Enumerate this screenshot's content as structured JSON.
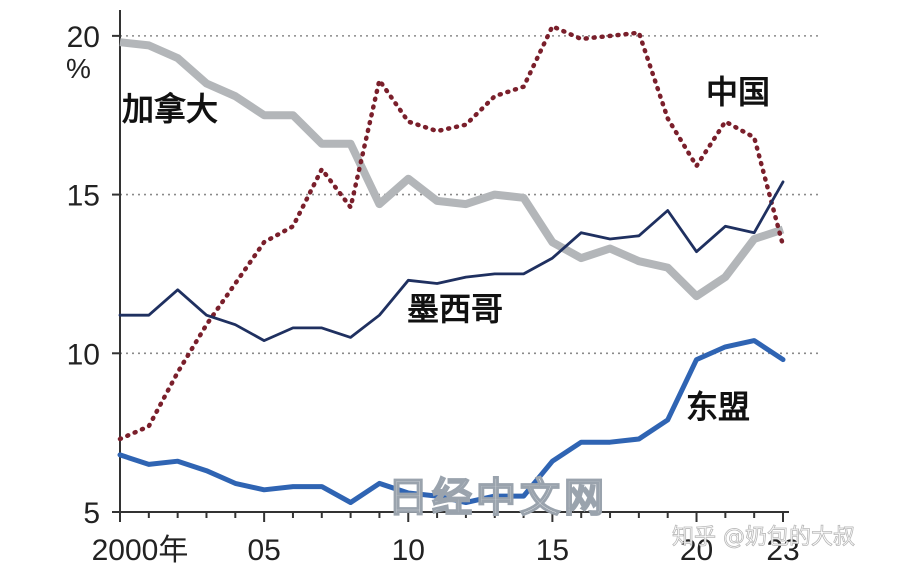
{
  "chart_data": {
    "type": "line",
    "unit": "%",
    "x": [
      2000,
      2001,
      2002,
      2003,
      2004,
      2005,
      2006,
      2007,
      2008,
      2009,
      2010,
      2011,
      2012,
      2013,
      2014,
      2015,
      2016,
      2017,
      2018,
      2019,
      2020,
      2021,
      2022,
      2023
    ],
    "x_tick_labels": [
      {
        "x": 2000,
        "label": "2000年"
      },
      {
        "x": 2005,
        "label": "05"
      },
      {
        "x": 2010,
        "label": "10"
      },
      {
        "x": 2015,
        "label": "15"
      },
      {
        "x": 2020,
        "label": "20"
      },
      {
        "x": 2023,
        "label": "23"
      }
    ],
    "y_ticks": [
      5,
      10,
      15,
      20
    ],
    "ylim": [
      5,
      20.5
    ],
    "xlim": [
      2000,
      2023
    ],
    "grid": "dotted horizontal",
    "series": [
      {
        "name": "加拿大",
        "color": "#b3b6b9",
        "style": "solid-thick",
        "values": [
          19.8,
          19.7,
          19.3,
          18.5,
          18.1,
          17.5,
          17.5,
          16.6,
          16.6,
          14.7,
          15.5,
          14.8,
          14.7,
          15.0,
          14.9,
          13.5,
          13.0,
          13.3,
          12.9,
          12.7,
          11.8,
          12.4,
          13.6,
          13.9
        ]
      },
      {
        "name": "中国",
        "color": "#7a1f2b",
        "style": "dotted",
        "values": [
          7.3,
          7.7,
          9.4,
          10.9,
          12.2,
          13.5,
          14.0,
          15.8,
          14.6,
          18.6,
          17.3,
          17.0,
          17.2,
          18.1,
          18.4,
          20.3,
          19.9,
          20.0,
          20.1,
          17.4,
          15.9,
          17.3,
          16.8,
          13.4
        ]
      },
      {
        "name": "墨西哥",
        "color": "#1f3060",
        "style": "solid-thin",
        "values": [
          11.2,
          11.2,
          12.0,
          11.2,
          10.9,
          10.4,
          10.8,
          10.8,
          10.5,
          11.2,
          12.3,
          12.2,
          12.4,
          12.5,
          12.5,
          13.0,
          13.8,
          13.6,
          13.7,
          14.5,
          13.2,
          14.0,
          13.8,
          15.4
        ]
      },
      {
        "name": "东盟",
        "color": "#2f64b3",
        "style": "solid-medium",
        "values": [
          6.8,
          6.5,
          6.6,
          6.3,
          5.9,
          5.7,
          5.8,
          5.8,
          5.3,
          5.9,
          5.6,
          5.5,
          5.3,
          5.5,
          5.5,
          6.6,
          7.2,
          7.2,
          7.3,
          7.9,
          9.8,
          10.2,
          10.4,
          9.8
        ]
      }
    ]
  },
  "watermark": "日经中文网",
  "credit": "知乎 @奶包的大叔"
}
